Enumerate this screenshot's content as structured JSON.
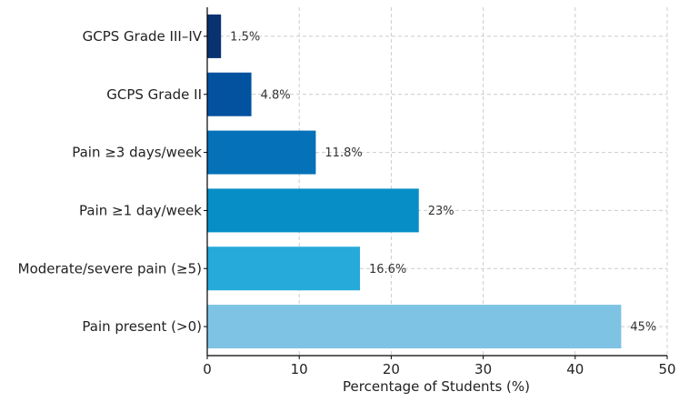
{
  "chart_data": {
    "type": "bar",
    "orientation": "horizontal",
    "title": "",
    "xlabel": "Percentage of Students (%)",
    "ylabel": "",
    "xlim": [
      0,
      50
    ],
    "xticks": [
      "0",
      "10",
      "20",
      "30",
      "40",
      "50"
    ],
    "grid": true,
    "categories": [
      "Pain present (>0)",
      "Moderate/severe pain (≥5)",
      "Pain ≥1 day/week",
      "Pain ≥3 days/week",
      "GCPS Grade II",
      "GCPS Grade III–IV"
    ],
    "values": [
      45,
      16.6,
      23,
      11.8,
      4.8,
      1.5
    ],
    "value_labels": [
      "45%",
      "16.6%",
      "23%",
      "11.8%",
      "4.8%",
      "1.5%"
    ],
    "colors": [
      "#7ec3e3",
      "#25aad9",
      "#078ec6",
      "#0571b8",
      "#02529f",
      "#083370"
    ]
  }
}
